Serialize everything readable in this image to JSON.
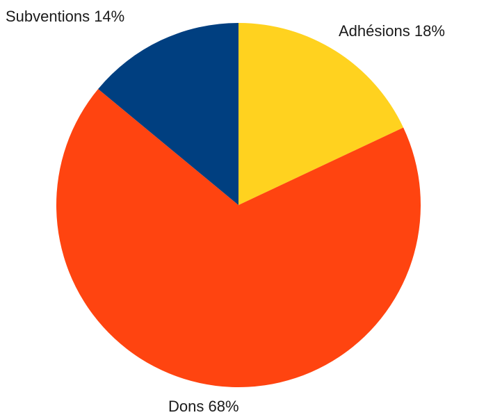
{
  "chart_data": {
    "type": "pie",
    "start_angle": "12 o'clock",
    "direction": "clockwise",
    "slices": [
      {
        "label": "Adhésions",
        "value": 18,
        "value_text": "18%",
        "color": "#FFD21F"
      },
      {
        "label": "Dons",
        "value": 68,
        "value_text": "68%",
        "color": "#FF4410"
      },
      {
        "label": "Subventions",
        "value": 14,
        "value_text": "14%",
        "color": "#003F80"
      }
    ],
    "labels": [
      "Adhésions 18%",
      "Dons 68%",
      "Subventions 14%"
    ]
  }
}
